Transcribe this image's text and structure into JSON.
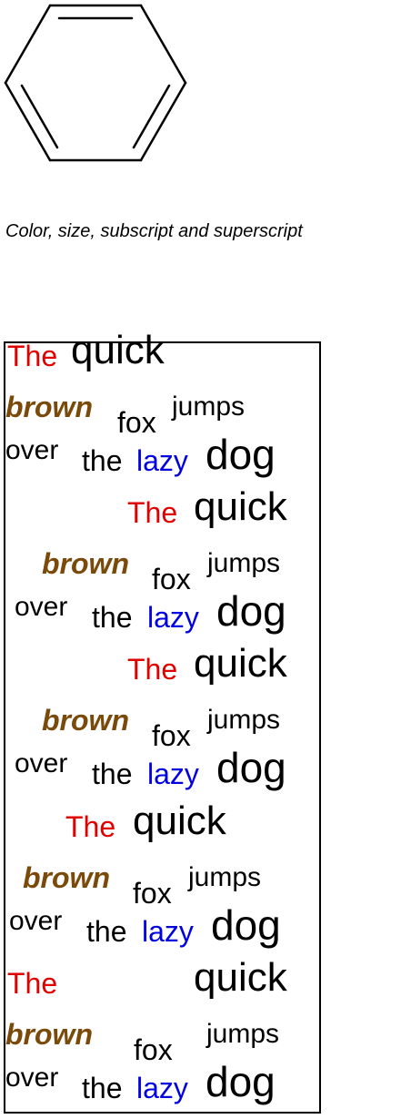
{
  "caption": "Color, size, subscript and superscript",
  "text_block": {
    "words": {
      "the": "The",
      "quick": "quick",
      "brown": "brown",
      "fox": "fox",
      "jumps": "jumps",
      "over": "over",
      "the2": "the",
      "lazy": "lazy",
      "dog": "dog"
    },
    "alignments": [
      "left",
      "right",
      "right",
      "center",
      "justify"
    ]
  },
  "colors": {
    "the": "#e00000",
    "brown": "#7a4a0a",
    "lazy": "#0000e0",
    "default": "#000000"
  },
  "icon": "benzene-ring-icon"
}
